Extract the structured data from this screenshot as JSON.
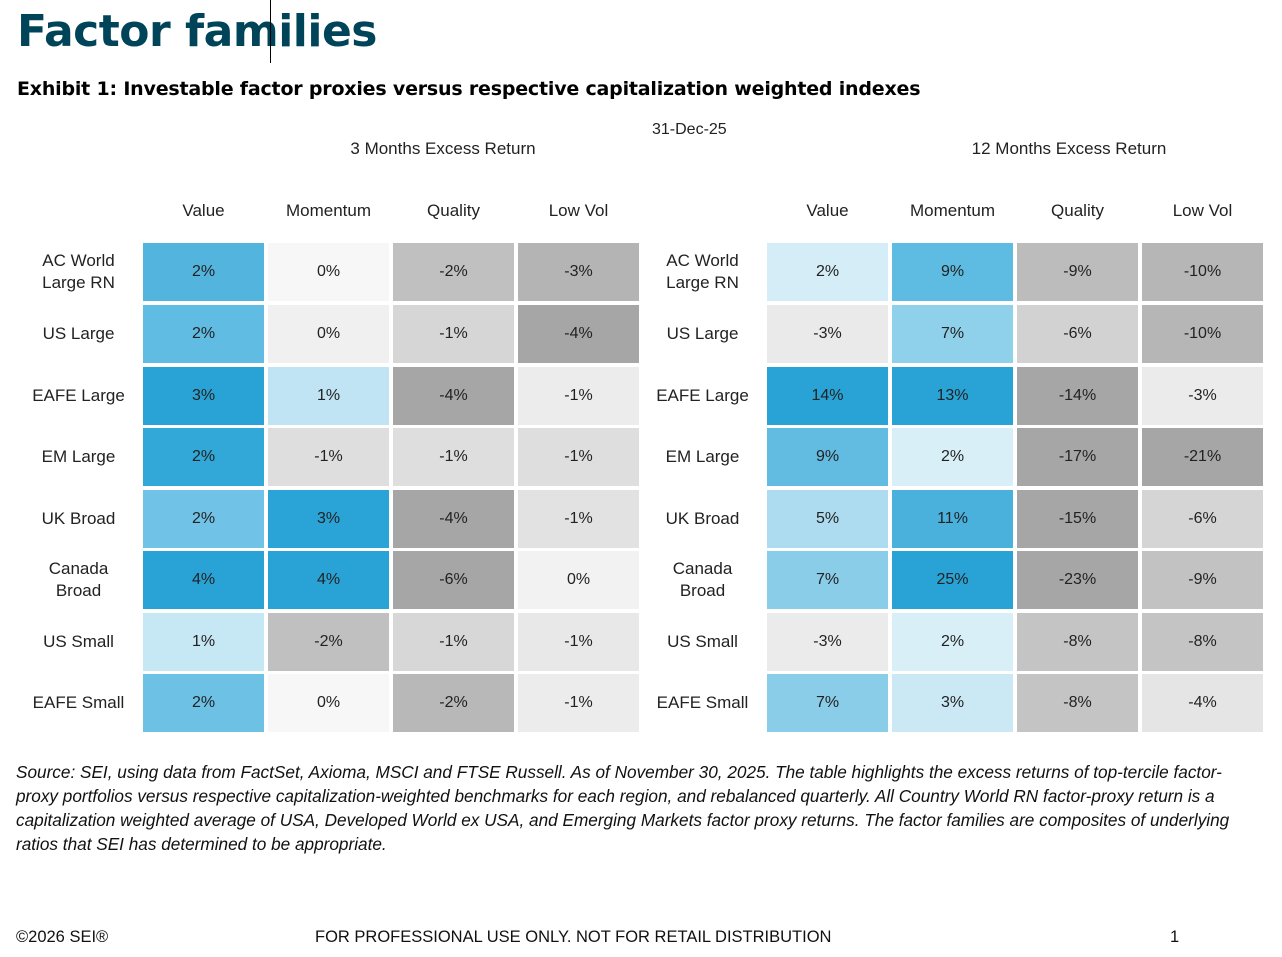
{
  "header": {
    "title": "Factor families",
    "subtitle": "Exhibit 1: Investable factor proxies versus respective capitalization weighted indexes",
    "date": "31-Dec-25"
  },
  "chart_data": {
    "type": "heatmap",
    "title": "Exhibit 1: Investable factor proxies versus respective capitalization weighted indexes",
    "date": "31-Dec-25",
    "rows": [
      "AC World\nLarge RN",
      "US Large",
      "EAFE Large",
      "EM Large",
      "UK Broad",
      "Canada\nBroad",
      "US Small",
      "EAFE Small"
    ],
    "columns": [
      "Value",
      "Momentum",
      "Quality",
      "Low Vol"
    ],
    "unit": "%",
    "panels": [
      {
        "name": "3 Months Excess Return",
        "values": [
          [
            2,
            0,
            -2,
            -3
          ],
          [
            2,
            0,
            -1,
            -4
          ],
          [
            3,
            1,
            -4,
            -1
          ],
          [
            2,
            -1,
            -1,
            -1
          ],
          [
            2,
            3,
            -4,
            -1
          ],
          [
            4,
            4,
            -6,
            0
          ],
          [
            1,
            -2,
            -1,
            -1
          ],
          [
            2,
            0,
            -2,
            -1
          ]
        ],
        "colors": [
          [
            "#53b4de",
            "#f7f7f7",
            "#c0c0c0",
            "#b4b4b4"
          ],
          [
            "#60bce2",
            "#f0f0f0",
            "#d6d6d6",
            "#a6a6a6"
          ],
          [
            "#29a3d5",
            "#c0e4f3",
            "#a6a6a6",
            "#ececec"
          ],
          [
            "#31a8d8",
            "#dedede",
            "#dedede",
            "#dedede"
          ],
          [
            "#70c2e6",
            "#2aa4d6",
            "#a6a6a6",
            "#e2e2e2"
          ],
          [
            "#29a3d5",
            "#29a3d5",
            "#a6a6a6",
            "#f2f2f2"
          ],
          [
            "#c6e7f4",
            "#c0c0c0",
            "#d7d7d7",
            "#e8e8e8"
          ],
          [
            "#6cc1e5",
            "#f7f7f7",
            "#b8b8b8",
            "#ececec"
          ]
        ]
      },
      {
        "name": "12 Months Excess Return",
        "values": [
          [
            2,
            9,
            -9,
            -10
          ],
          [
            -3,
            7,
            -6,
            -10
          ],
          [
            14,
            13,
            -14,
            -3
          ],
          [
            9,
            2,
            -17,
            -21
          ],
          [
            5,
            11,
            -15,
            -6
          ],
          [
            7,
            25,
            -23,
            -9
          ],
          [
            -3,
            2,
            -8,
            -8
          ],
          [
            7,
            3,
            -8,
            -4
          ]
        ],
        "colors": [
          [
            "#d5edf7",
            "#5ebbe1",
            "#bcbcbc",
            "#b6b6b6"
          ],
          [
            "#eaeaea",
            "#8fd0ea",
            "#d2d2d2",
            "#b6b6b6"
          ],
          [
            "#29a3d5",
            "#29a3d5",
            "#a6a6a6",
            "#ebebeb"
          ],
          [
            "#62bce2",
            "#d8eff8",
            "#a6a6a6",
            "#a6a6a6"
          ],
          [
            "#addcf0",
            "#4ab1dd",
            "#a6a6a6",
            "#d5d5d5"
          ],
          [
            "#89cde9",
            "#29a3d5",
            "#a6a6a6",
            "#c2c2c2"
          ],
          [
            "#ebebeb",
            "#d8eff8",
            "#c4c4c4",
            "#c4c4c4"
          ],
          [
            "#89cde9",
            "#cbe9f5",
            "#c4c4c4",
            "#e5e5e5"
          ]
        ]
      }
    ]
  },
  "source": "Source: SEI, using data from FactSet, Axioma, MSCI and FTSE Russell. As of November 30, 2025. The table highlights the excess returns of top-tercile factor-proxy portfolios versus respective capitalization-weighted benchmarks for each region, and rebalanced quarterly. All Country World RN factor-proxy return is a capitalization weighted average of USA, Developed World ex USA, and Emerging Markets factor proxy returns. The factor families are composites of underlying ratios that SEI has determined to be appropriate.",
  "footer": {
    "copyright": "©2026 SEI®",
    "disclaimer": "FOR PROFESSIONAL USE ONLY. NOT FOR RETAIL DISTRIBUTION",
    "page": "1"
  }
}
